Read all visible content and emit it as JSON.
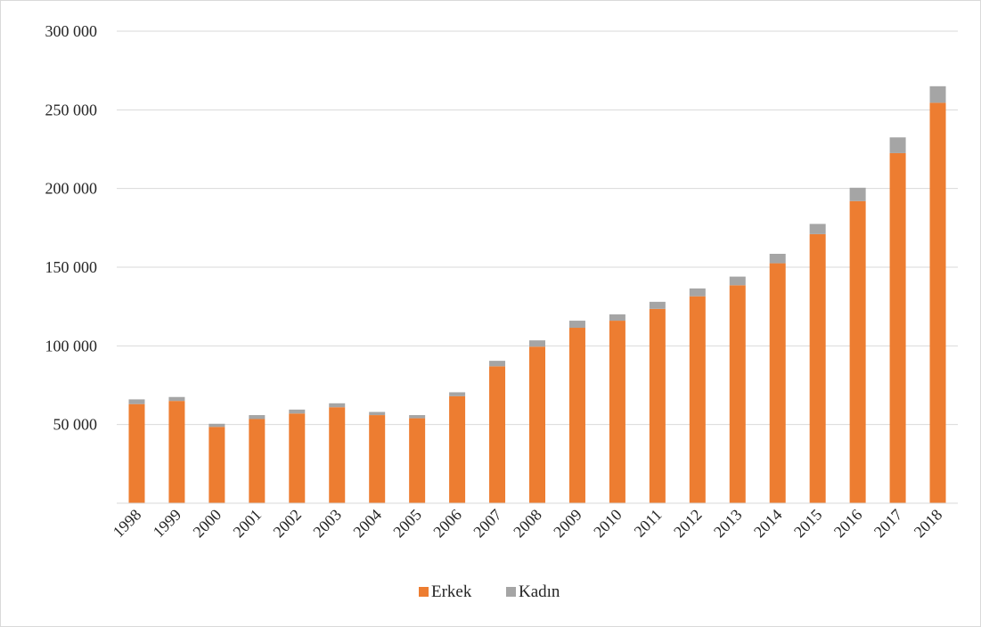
{
  "chart_data": {
    "type": "bar",
    "stacked": true,
    "categories": [
      "1998",
      "1999",
      "2000",
      "2001",
      "2002",
      "2003",
      "2004",
      "2005",
      "2006",
      "2007",
      "2008",
      "2009",
      "2010",
      "2011",
      "2012",
      "2013",
      "2014",
      "2015",
      "2016",
      "2017",
      "2018"
    ],
    "series": [
      {
        "name": "Erkek",
        "color": "#ed7d31",
        "values": [
          63000,
          65000,
          48500,
          53500,
          57000,
          61000,
          56000,
          54000,
          68000,
          87000,
          99500,
          111500,
          116000,
          123500,
          131500,
          138500,
          152500,
          171000,
          192000,
          222500,
          254500
        ]
      },
      {
        "name": "Kadın",
        "color": "#a5a5a5",
        "values": [
          3000,
          2500,
          2000,
          2500,
          2500,
          2500,
          2000,
          2000,
          2500,
          3500,
          4000,
          4500,
          4000,
          4500,
          5000,
          5500,
          6000,
          6500,
          8500,
          10000,
          10500
        ]
      }
    ],
    "ylim": [
      0,
      300000
    ],
    "yticks": [
      {
        "value": 50000,
        "label": "50 000"
      },
      {
        "value": 100000,
        "label": "100 000"
      },
      {
        "value": 150000,
        "label": "150 000"
      },
      {
        "value": 200000,
        "label": "200 000"
      },
      {
        "value": 250000,
        "label": "250 000"
      },
      {
        "value": 300000,
        "label": "300 000"
      }
    ],
    "grid": true,
    "legend_position": "bottom",
    "title": "",
    "xlabel": "",
    "ylabel": ""
  }
}
